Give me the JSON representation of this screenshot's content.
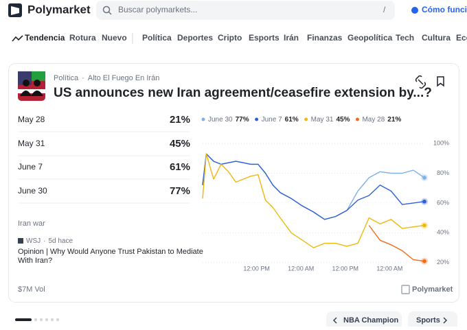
{
  "header": {
    "brand": "Polymarket",
    "search_placeholder": "Buscar polymarkets...",
    "search_shortcut": "/",
    "how_it_works": "Cómo funciona"
  },
  "nav": {
    "items": [
      "Tendencia",
      "Rotura",
      "Nuevo",
      "Política",
      "Deportes",
      "Cripto",
      "Esports",
      "Irán",
      "Finanzas",
      "Geopolítica",
      "Tech",
      "Cultura",
      "Economía"
    ]
  },
  "card": {
    "category": "Política",
    "tag": "Alto El Fuego En Irán",
    "separator": "·",
    "title": "US announces new Iran agreement/ceasefire extension by...?",
    "outcomes": [
      {
        "label": "May 28",
        "value": "21%"
      },
      {
        "label": "May 31",
        "value": "45%"
      },
      {
        "label": "June 7",
        "value": "61%"
      },
      {
        "label": "June 30",
        "value": "77%"
      }
    ],
    "news": {
      "topic": "Iran war",
      "source": "WSJ",
      "age": "5d hace",
      "headline_lines": [
        "Opinion | Why Would Anyone Trust Pakistan to Mediate",
        "With Iran?"
      ]
    },
    "volume": "$7M Vol",
    "watermark": "Polymarket"
  },
  "chart_data": {
    "type": "line",
    "x": [
      0,
      1,
      3,
      5,
      7,
      9,
      11,
      13,
      15,
      17,
      19,
      21,
      24,
      27,
      30,
      33,
      36,
      39,
      42,
      45,
      48,
      51,
      54,
      57,
      60
    ],
    "xlim": [
      0,
      60
    ],
    "xticks": [
      {
        "value": 14.6,
        "label": "12:00 PM"
      },
      {
        "value": 26.6,
        "label": "12:00 AM"
      },
      {
        "value": 38.6,
        "label": "12:00 PM"
      },
      {
        "value": 50.6,
        "label": "12:00 AM"
      }
    ],
    "ylim": [
      19,
      100
    ],
    "yticks": [
      {
        "value": 100,
        "label": "100%"
      },
      {
        "value": 80,
        "label": "80%"
      },
      {
        "value": 60,
        "label": "60%"
      },
      {
        "value": 40,
        "label": "40%"
      },
      {
        "value": 20,
        "label": "20%"
      }
    ],
    "grid": true,
    "series": [
      {
        "name": "June 30",
        "current": "77%",
        "color": "#7fb0e6",
        "values": [
          72,
          93,
          88,
          86,
          87,
          88,
          87,
          86,
          86,
          80,
          72,
          67,
          63,
          58,
          54,
          49,
          51,
          55,
          68,
          77,
          81,
          80,
          80,
          82,
          77
        ]
      },
      {
        "name": "June 7",
        "current": "61%",
        "color": "#2d5fd6",
        "values": [
          72,
          93,
          88,
          86,
          87,
          88,
          87,
          86,
          86,
          80,
          72,
          67,
          63,
          58,
          54,
          49,
          51,
          55,
          62,
          65,
          72,
          68,
          59,
          60,
          61
        ]
      },
      {
        "name": "May 31",
        "current": "45%",
        "color": "#eeb80c",
        "values": [
          63,
          93,
          76,
          86,
          81,
          74,
          76,
          78,
          79,
          62,
          57,
          50,
          40,
          35,
          30,
          33,
          33,
          31,
          33,
          50,
          46,
          49,
          43,
          44,
          45
        ]
      },
      {
        "name": "May 28",
        "current": "21%",
        "color": "#f26b1d",
        "values": [
          null,
          null,
          null,
          null,
          null,
          null,
          null,
          null,
          null,
          null,
          null,
          null,
          null,
          null,
          null,
          null,
          null,
          null,
          null,
          45,
          35,
          32,
          28,
          22,
          21
        ]
      }
    ]
  },
  "footer": {
    "next": "NBA Champion",
    "sports": "Sports"
  }
}
